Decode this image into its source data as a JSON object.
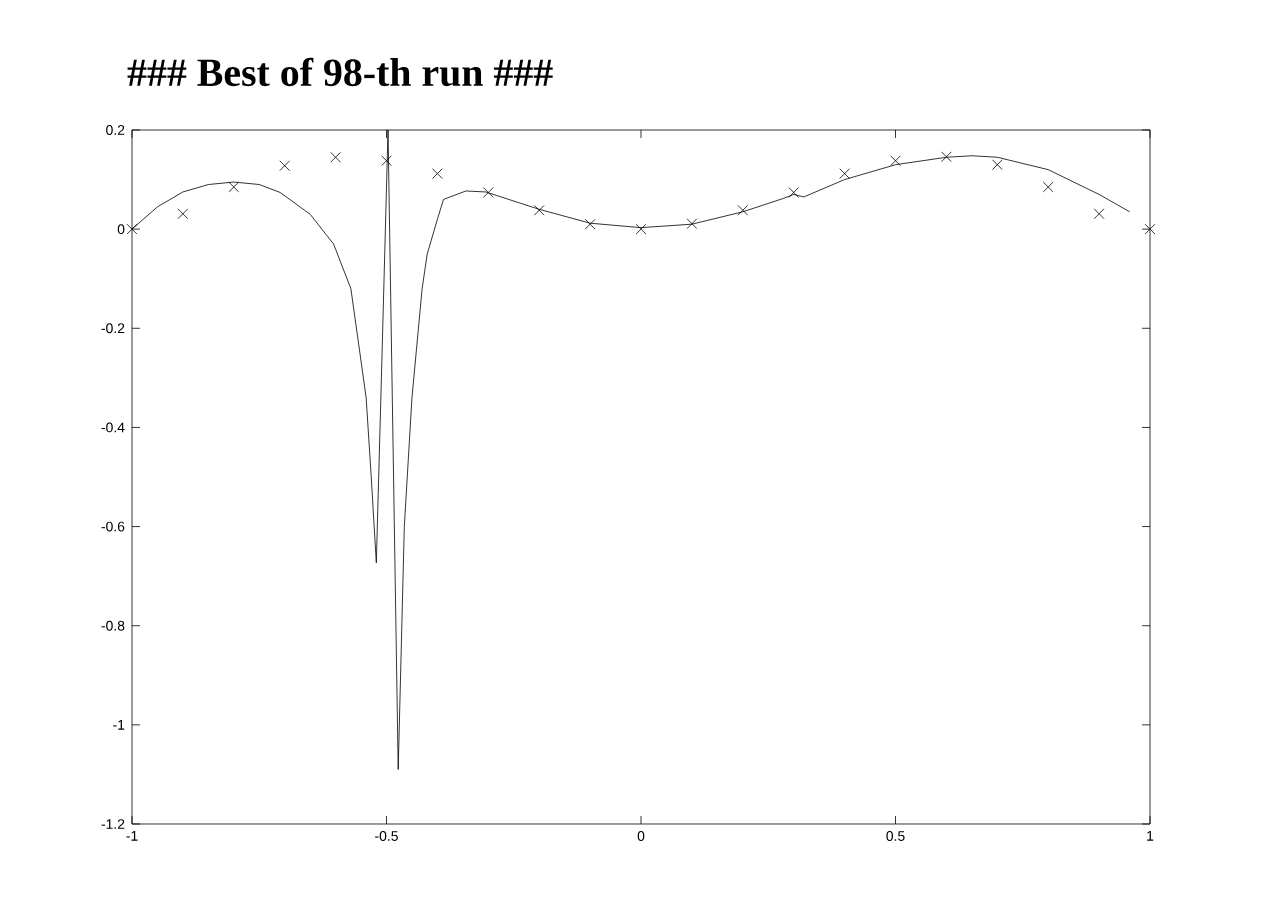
{
  "chart_data": {
    "type": "line",
    "title": "### Best of 98-th run ###",
    "xlim": [
      -1,
      1
    ],
    "ylim": [
      -1.2,
      0.2
    ],
    "xticks": [
      -1,
      -0.5,
      0,
      0.5,
      1
    ],
    "yticks": [
      -1.2,
      -1,
      -0.8,
      -0.6,
      -0.4,
      -0.2,
      0,
      0.2
    ],
    "grid": false,
    "series": [
      {
        "color": "#000000",
        "marker": "none",
        "x": [
          -1,
          -0.95,
          -0.9,
          -0.85,
          -0.8,
          -0.75,
          -0.709,
          -0.65,
          -0.604,
          -0.57,
          -0.54,
          -0.53,
          -0.52,
          -0.51,
          -0.497,
          -0.477,
          -0.465,
          -0.45,
          -0.43,
          -0.42,
          -0.4,
          -0.388,
          -0.344,
          -0.305,
          -0.2,
          -0.1,
          0,
          0.1,
          0.2,
          0.28,
          0.3,
          0.32,
          0.4,
          0.5,
          0.6,
          0.65,
          0.7,
          0.8,
          0.9,
          0.96
        ],
        "values": [
          0,
          0.045,
          0.075,
          0.09,
          0.095,
          0.09,
          0.074,
          0.03,
          -0.03,
          -0.12,
          -0.34,
          -0.5,
          -0.673,
          -0.3,
          0.2,
          -1.09,
          -0.6,
          -0.34,
          -0.12,
          -0.05,
          0.02,
          0.06,
          0.077,
          0.075,
          0.04,
          0.012,
          0.003,
          0.01,
          0.035,
          0.062,
          0.07,
          0.065,
          0.1,
          0.13,
          0.145,
          0.148,
          0.145,
          0.12,
          0.07,
          0.035
        ]
      },
      {
        "type": "scatter",
        "color": "#000000",
        "marker": "cross",
        "x": [
          -1,
          -0.9,
          -0.8,
          -0.7,
          -0.6,
          -0.5,
          -0.4,
          -0.3,
          -0.2,
          -0.1,
          0,
          0.1,
          0.2,
          0.3,
          0.4,
          0.5,
          0.6,
          0.7,
          0.8,
          0.9,
          1
        ],
        "values": [
          0,
          0.031,
          0.085,
          0.128,
          0.145,
          0.138,
          0.112,
          0.074,
          0.038,
          0.01,
          0,
          0.011,
          0.038,
          0.074,
          0.112,
          0.138,
          0.146,
          0.13,
          0.085,
          0.031,
          0
        ]
      }
    ]
  }
}
